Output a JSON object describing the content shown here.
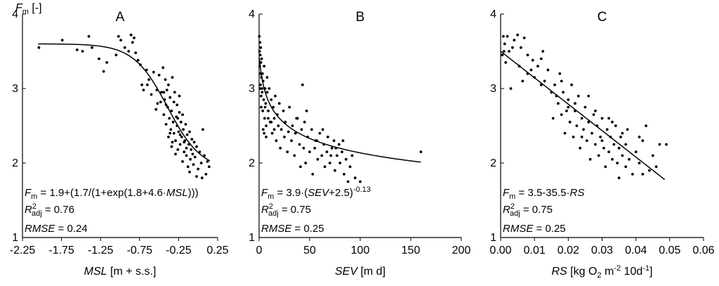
{
  "y_axis_label": {
    "main": "F",
    "sub": "m",
    "rest": " [-]"
  },
  "chart_data": [
    {
      "type": "scatter",
      "panel_letter": "A",
      "xlabel": {
        "italic": "MSL",
        "rest": " [m + s.s.]"
      },
      "xlim": [
        -2.25,
        0.25
      ],
      "ylim": [
        1,
        4
      ],
      "x_ticks": [
        -2.25,
        -1.75,
        -1.25,
        -0.75,
        -0.25,
        0.25
      ],
      "x_tick_labels": [
        "-2.25",
        "-1.75",
        "-1.25",
        "-0.75",
        "-0.25",
        "0.25"
      ],
      "y_ticks": [
        1,
        2,
        3,
        4
      ],
      "y_tick_labels": [
        "1",
        "2",
        "3",
        "4"
      ],
      "equation": {
        "var": "F",
        "sub": "m",
        "expr_parts": [
          {
            "t": " = 1.9+(1.7/(1+exp(1.8+4.6·",
            "i": false
          },
          {
            "t": "MSL",
            "i": true
          },
          {
            "t": ")))",
            "i": false
          }
        ]
      },
      "r2": {
        "sub": "adj",
        "value": " = 0.76"
      },
      "rmse": {
        "label": "RMSE",
        "value": " = 0.24"
      },
      "fit": {
        "kind": "logistic",
        "a": 1.9,
        "b": 1.7,
        "c": 1.8,
        "d": 4.6,
        "x_range": [
          -2.05,
          0.15
        ]
      },
      "points": [
        [
          -2.04,
          3.55
        ],
        [
          -1.74,
          3.65
        ],
        [
          -1.55,
          3.52
        ],
        [
          -1.48,
          3.5
        ],
        [
          -1.4,
          3.7
        ],
        [
          -1.36,
          3.55
        ],
        [
          -1.27,
          3.4
        ],
        [
          -1.21,
          3.23
        ],
        [
          -1.17,
          3.35
        ],
        [
          -1.05,
          3.45
        ],
        [
          -1.02,
          3.7
        ],
        [
          -0.99,
          3.65
        ],
        [
          -0.94,
          3.55
        ],
        [
          -0.89,
          3.5
        ],
        [
          -0.86,
          3.72
        ],
        [
          -0.84,
          3.62
        ],
        [
          -0.82,
          3.68
        ],
        [
          -0.8,
          3.48
        ],
        [
          -0.77,
          3.38
        ],
        [
          -0.74,
          3.32
        ],
        [
          -0.72,
          3.05
        ],
        [
          -0.7,
          2.98
        ],
        [
          -0.66,
          3.25
        ],
        [
          -0.63,
          3.12
        ],
        [
          -0.6,
          2.92
        ],
        [
          -0.57,
          3.22
        ],
        [
          -0.54,
          2.72
        ],
        [
          -0.53,
          2.98
        ],
        [
          -0.5,
          3.18
        ],
        [
          -0.48,
          2.82
        ],
        [
          -0.47,
          2.95
        ],
        [
          -0.45,
          3.28
        ],
        [
          -0.44,
          2.65
        ],
        [
          -0.43,
          2.85
        ],
        [
          -0.42,
          3.12
        ],
        [
          -0.41,
          2.52
        ],
        [
          -0.4,
          2.98
        ],
        [
          -0.39,
          2.75
        ],
        [
          -0.38,
          2.35
        ],
        [
          -0.38,
          3.05
        ],
        [
          -0.37,
          2.6
        ],
        [
          -0.36,
          2.88
        ],
        [
          -0.35,
          2.45
        ],
        [
          -0.34,
          2.22
        ],
        [
          -0.34,
          2.7
        ],
        [
          -0.33,
          3.15
        ],
        [
          -0.32,
          2.55
        ],
        [
          -0.31,
          2.4
        ],
        [
          -0.31,
          2.82
        ],
        [
          -0.3,
          2.95
        ],
        [
          -0.29,
          2.3
        ],
        [
          -0.28,
          2.62
        ],
        [
          -0.27,
          2.5
        ],
        [
          -0.27,
          2.78
        ],
        [
          -0.26,
          2.18
        ],
        [
          -0.25,
          2.42
        ],
        [
          -0.24,
          2.68
        ],
        [
          -0.24,
          2.9
        ],
        [
          -0.23,
          2.25
        ],
        [
          -0.22,
          2.55
        ],
        [
          -0.21,
          2.35
        ],
        [
          -0.2,
          2.02
        ],
        [
          -0.2,
          2.65
        ],
        [
          -0.19,
          2.45
        ],
        [
          -0.18,
          2.15
        ],
        [
          -0.17,
          2.3
        ],
        [
          -0.16,
          2.52
        ],
        [
          -0.15,
          2.1
        ],
        [
          -0.14,
          2.38
        ],
        [
          -0.13,
          1.95
        ],
        [
          -0.12,
          2.25
        ],
        [
          -0.11,
          2.42
        ],
        [
          -0.1,
          2.05
        ],
        [
          -0.09,
          2.18
        ],
        [
          -0.08,
          2.32
        ],
        [
          -0.07,
          2.12
        ],
        [
          -0.06,
          1.98
        ],
        [
          -0.05,
          2.28
        ],
        [
          -0.04,
          2.08
        ],
        [
          -0.02,
          2.22
        ],
        [
          0.0,
          1.92
        ],
        [
          0.02,
          2.15
        ],
        [
          0.04,
          2.0
        ],
        [
          0.06,
          2.45
        ],
        [
          0.08,
          2.1
        ],
        [
          0.1,
          1.85
        ],
        [
          0.12,
          2.02
        ],
        [
          0.14,
          1.95
        ],
        [
          -0.36,
          2.4
        ],
        [
          -0.33,
          2.28
        ],
        [
          -0.29,
          2.12
        ],
        [
          -0.26,
          2.6
        ],
        [
          -0.23,
          2.38
        ],
        [
          -0.18,
          2.28
        ],
        [
          -0.15,
          2.2
        ],
        [
          -0.44,
          2.95
        ],
        [
          -0.52,
          2.8
        ],
        [
          -0.41,
          2.78
        ],
        [
          -0.11,
          1.88
        ],
        [
          -0.02,
          1.82
        ],
        [
          0.05,
          1.8
        ],
        [
          -0.65,
          3.05
        ]
      ]
    },
    {
      "type": "scatter",
      "panel_letter": "B",
      "xlabel": {
        "italic": "SEV",
        "rest": " [m d]"
      },
      "xlim": [
        0,
        200
      ],
      "ylim": [
        1,
        4
      ],
      "x_ticks": [
        0,
        50,
        100,
        150,
        200
      ],
      "x_tick_labels": [
        "0",
        "50",
        "100",
        "150",
        "200"
      ],
      "y_ticks": [
        1,
        2,
        3,
        4
      ],
      "y_tick_labels": [
        "1",
        "2",
        "3",
        "4"
      ],
      "equation": {
        "var": "F",
        "sub": "m",
        "expr_parts": [
          {
            "t": " = 3.9·(",
            "i": false
          },
          {
            "t": "SEV",
            "i": true
          },
          {
            "t": "+2.5)",
            "i": false
          }
        ],
        "sup": "-0.13"
      },
      "r2": {
        "sub": "adj",
        "value": " = 0.75"
      },
      "rmse": {
        "label": "RMSE",
        "value": " = 0.25"
      },
      "fit": {
        "kind": "power",
        "a": 3.9,
        "b": 2.5,
        "p": -0.13,
        "x_range": [
          0.3,
          160
        ]
      },
      "points": [
        [
          0.3,
          3.7
        ],
        [
          0.5,
          3.5
        ],
        [
          0.6,
          3.3
        ],
        [
          0.8,
          3.62
        ],
        [
          1.0,
          3.2
        ],
        [
          1.2,
          3.45
        ],
        [
          1.4,
          3.05
        ],
        [
          1.6,
          3.55
        ],
        [
          1.8,
          3.35
        ],
        [
          2.0,
          2.9
        ],
        [
          2.3,
          3.15
        ],
        [
          2.6,
          3.4
        ],
        [
          3.0,
          2.95
        ],
        [
          3.3,
          3.2
        ],
        [
          3.6,
          2.7
        ],
        [
          4.0,
          3.1
        ],
        [
          4.5,
          2.85
        ],
        [
          5.0,
          3.3
        ],
        [
          5.5,
          2.6
        ],
        [
          6.0,
          3.0
        ],
        [
          6.5,
          2.8
        ],
        [
          7.0,
          2.5
        ],
        [
          8.0,
          2.95
        ],
        [
          9.0,
          2.7
        ],
        [
          10.0,
          3.0
        ],
        [
          11.0,
          2.55
        ],
        [
          12.0,
          2.85
        ],
        [
          13.0,
          2.4
        ],
        [
          14.0,
          2.75
        ],
        [
          15.0,
          2.6
        ],
        [
          16.0,
          2.9
        ],
        [
          17.0,
          2.3
        ],
        [
          18.0,
          2.65
        ],
        [
          19.0,
          2.5
        ],
        [
          20.0,
          2.8
        ],
        [
          21.0,
          2.2
        ],
        [
          22.0,
          2.45
        ],
        [
          24.0,
          2.7
        ],
        [
          25.0,
          2.35
        ],
        [
          26.0,
          2.55
        ],
        [
          28.0,
          2.15
        ],
        [
          29.0,
          2.42
        ],
        [
          30.0,
          2.75
        ],
        [
          32.0,
          2.3
        ],
        [
          33.0,
          2.5
        ],
        [
          35.0,
          2.1
        ],
        [
          36.0,
          2.4
        ],
        [
          38.0,
          2.6
        ],
        [
          40.0,
          2.25
        ],
        [
          41.0,
          1.95
        ],
        [
          42.0,
          2.45
        ],
        [
          44.0,
          2.2
        ],
        [
          45.0,
          2.55
        ],
        [
          46.0,
          2.0
        ],
        [
          48.0,
          2.35
        ],
        [
          50.0,
          2.15
        ],
        [
          52.0,
          2.45
        ],
        [
          53.0,
          1.85
        ],
        [
          55.0,
          2.2
        ],
        [
          57.0,
          2.3
        ],
        [
          58.0,
          2.05
        ],
        [
          60.0,
          2.4
        ],
        [
          62.0,
          2.1
        ],
        [
          64.0,
          2.25
        ],
        [
          65.0,
          1.95
        ],
        [
          67.0,
          2.15
        ],
        [
          68.0,
          2.35
        ],
        [
          70.0,
          2.0
        ],
        [
          72.0,
          2.2
        ],
        [
          74.0,
          2.3
        ],
        [
          75.0,
          1.9
        ],
        [
          77.0,
          2.1
        ],
        [
          79.0,
          2.25
        ],
        [
          80.0,
          2.0
        ],
        [
          82.0,
          2.15
        ],
        [
          84.0,
          1.85
        ],
        [
          86.0,
          2.05
        ],
        [
          88.0,
          1.75
        ],
        [
          90.0,
          1.95
        ],
        [
          92.0,
          2.1
        ],
        [
          95.0,
          1.8
        ],
        [
          100.0,
          1.75
        ],
        [
          160.0,
          2.15
        ],
        [
          3.0,
          3.0
        ],
        [
          6.0,
          2.75
        ],
        [
          9.0,
          2.6
        ],
        [
          12.0,
          2.55
        ],
        [
          15.0,
          2.45
        ],
        [
          5.0,
          2.4
        ],
        [
          8.0,
          3.15
        ],
        [
          43.0,
          3.05
        ],
        [
          37.0,
          2.6
        ],
        [
          47.0,
          2.7
        ],
        [
          56.0,
          2.3
        ],
        [
          63.0,
          2.45
        ],
        [
          71.0,
          2.1
        ],
        [
          76.0,
          2.2
        ],
        [
          83.0,
          2.3
        ],
        [
          1.0,
          3.0
        ],
        [
          2.0,
          2.75
        ],
        [
          4.0,
          2.45
        ],
        [
          7.0,
          2.35
        ]
      ]
    },
    {
      "type": "scatter",
      "panel_letter": "C",
      "xlabel": {
        "italic": "RS",
        "before_sub": " [kg O",
        "sub": "2",
        "mid": " m",
        "sup": "-2",
        "rest": " 10d",
        "sup2": "-1",
        "end": "]"
      },
      "xlim": [
        0,
        0.06
      ],
      "ylim": [
        1,
        4
      ],
      "x_ticks": [
        0,
        0.01,
        0.02,
        0.03,
        0.04,
        0.05,
        0.06
      ],
      "x_tick_labels": [
        "0.00",
        "0.01",
        "0.02",
        "0.03",
        "0.04",
        "0.05",
        "0.06"
      ],
      "y_ticks": [
        1,
        2,
        3,
        4
      ],
      "y_tick_labels": [
        "1",
        "2",
        "3",
        "4"
      ],
      "equation": {
        "var": "F",
        "sub": "m",
        "expr_parts": [
          {
            "t": " = 3.5-35.5·",
            "i": false
          },
          {
            "t": "RS",
            "i": true
          }
        ]
      },
      "r2": {
        "sub": "adj",
        "value": " = 0.75"
      },
      "rmse": {
        "label": "RMSE",
        "value": " = 0.25"
      },
      "fit": {
        "kind": "linear",
        "a": 3.5,
        "b": -35.5,
        "x_range": [
          0.0,
          0.0485
        ]
      },
      "points": [
        [
          0.0005,
          3.45
        ],
        [
          0.0008,
          3.7
        ],
        [
          0.001,
          3.5
        ],
        [
          0.0012,
          3.6
        ],
        [
          0.0015,
          3.35
        ],
        [
          0.002,
          3.7
        ],
        [
          0.0025,
          3.5
        ],
        [
          0.003,
          3.0
        ],
        [
          0.0035,
          3.55
        ],
        [
          0.004,
          3.65
        ],
        [
          0.005,
          3.72
        ],
        [
          0.0055,
          3.3
        ],
        [
          0.006,
          3.55
        ],
        [
          0.0065,
          3.1
        ],
        [
          0.007,
          3.68
        ],
        [
          0.008,
          3.45
        ],
        [
          0.009,
          3.25
        ],
        [
          0.0095,
          3.38
        ],
        [
          0.01,
          3.15
        ],
        [
          0.011,
          3.3
        ],
        [
          0.012,
          3.05
        ],
        [
          0.0125,
          3.5
        ],
        [
          0.013,
          3.1
        ],
        [
          0.014,
          3.25
        ],
        [
          0.015,
          2.95
        ],
        [
          0.0155,
          2.6
        ],
        [
          0.016,
          3.05
        ],
        [
          0.017,
          2.8
        ],
        [
          0.0175,
          3.2
        ],
        [
          0.018,
          2.65
        ],
        [
          0.0185,
          2.95
        ],
        [
          0.019,
          2.4
        ],
        [
          0.0195,
          2.7
        ],
        [
          0.02,
          2.85
        ],
        [
          0.0205,
          2.55
        ],
        [
          0.021,
          3.05
        ],
        [
          0.0215,
          2.35
        ],
        [
          0.022,
          2.7
        ],
        [
          0.0225,
          2.5
        ],
        [
          0.023,
          2.9
        ],
        [
          0.0235,
          2.2
        ],
        [
          0.024,
          2.6
        ],
        [
          0.0245,
          2.45
        ],
        [
          0.025,
          2.75
        ],
        [
          0.0255,
          2.3
        ],
        [
          0.026,
          2.55
        ],
        [
          0.0265,
          2.05
        ],
        [
          0.027,
          2.4
        ],
        [
          0.0275,
          2.65
        ],
        [
          0.028,
          2.25
        ],
        [
          0.0285,
          2.5
        ],
        [
          0.029,
          2.1
        ],
        [
          0.0295,
          2.35
        ],
        [
          0.03,
          2.6
        ],
        [
          0.0305,
          2.2
        ],
        [
          0.031,
          1.95
        ],
        [
          0.0315,
          2.45
        ],
        [
          0.032,
          2.15
        ],
        [
          0.0325,
          2.35
        ],
        [
          0.033,
          2.05
        ],
        [
          0.0335,
          2.25
        ],
        [
          0.034,
          2.5
        ],
        [
          0.0345,
          2.0
        ],
        [
          0.035,
          2.2
        ],
        [
          0.0355,
          2.35
        ],
        [
          0.036,
          2.1
        ],
        [
          0.037,
          2.25
        ],
        [
          0.0375,
          2.45
        ],
        [
          0.038,
          2.05
        ],
        [
          0.039,
          1.85
        ],
        [
          0.04,
          2.15
        ],
        [
          0.041,
          2.0
        ],
        [
          0.042,
          2.3
        ],
        [
          0.043,
          2.5
        ],
        [
          0.044,
          1.9
        ],
        [
          0.045,
          2.1
        ],
        [
          0.047,
          2.25
        ],
        [
          0.049,
          2.25
        ],
        [
          0.022,
          2.8
        ],
        [
          0.018,
          3.1
        ],
        [
          0.026,
          2.9
        ],
        [
          0.028,
          2.7
        ],
        [
          0.033,
          2.55
        ],
        [
          0.036,
          2.4
        ],
        [
          0.041,
          2.35
        ],
        [
          0.046,
          1.95
        ],
        [
          0.035,
          1.8
        ],
        [
          0.042,
          1.85
        ],
        [
          0.012,
          3.4
        ],
        [
          0.008,
          3.2
        ],
        [
          0.02,
          2.75
        ],
        [
          0.024,
          2.35
        ],
        [
          0.03,
          2.3
        ],
        [
          0.032,
          2.6
        ],
        [
          0.037,
          1.95
        ],
        [
          0.0165,
          2.9
        ]
      ]
    }
  ]
}
